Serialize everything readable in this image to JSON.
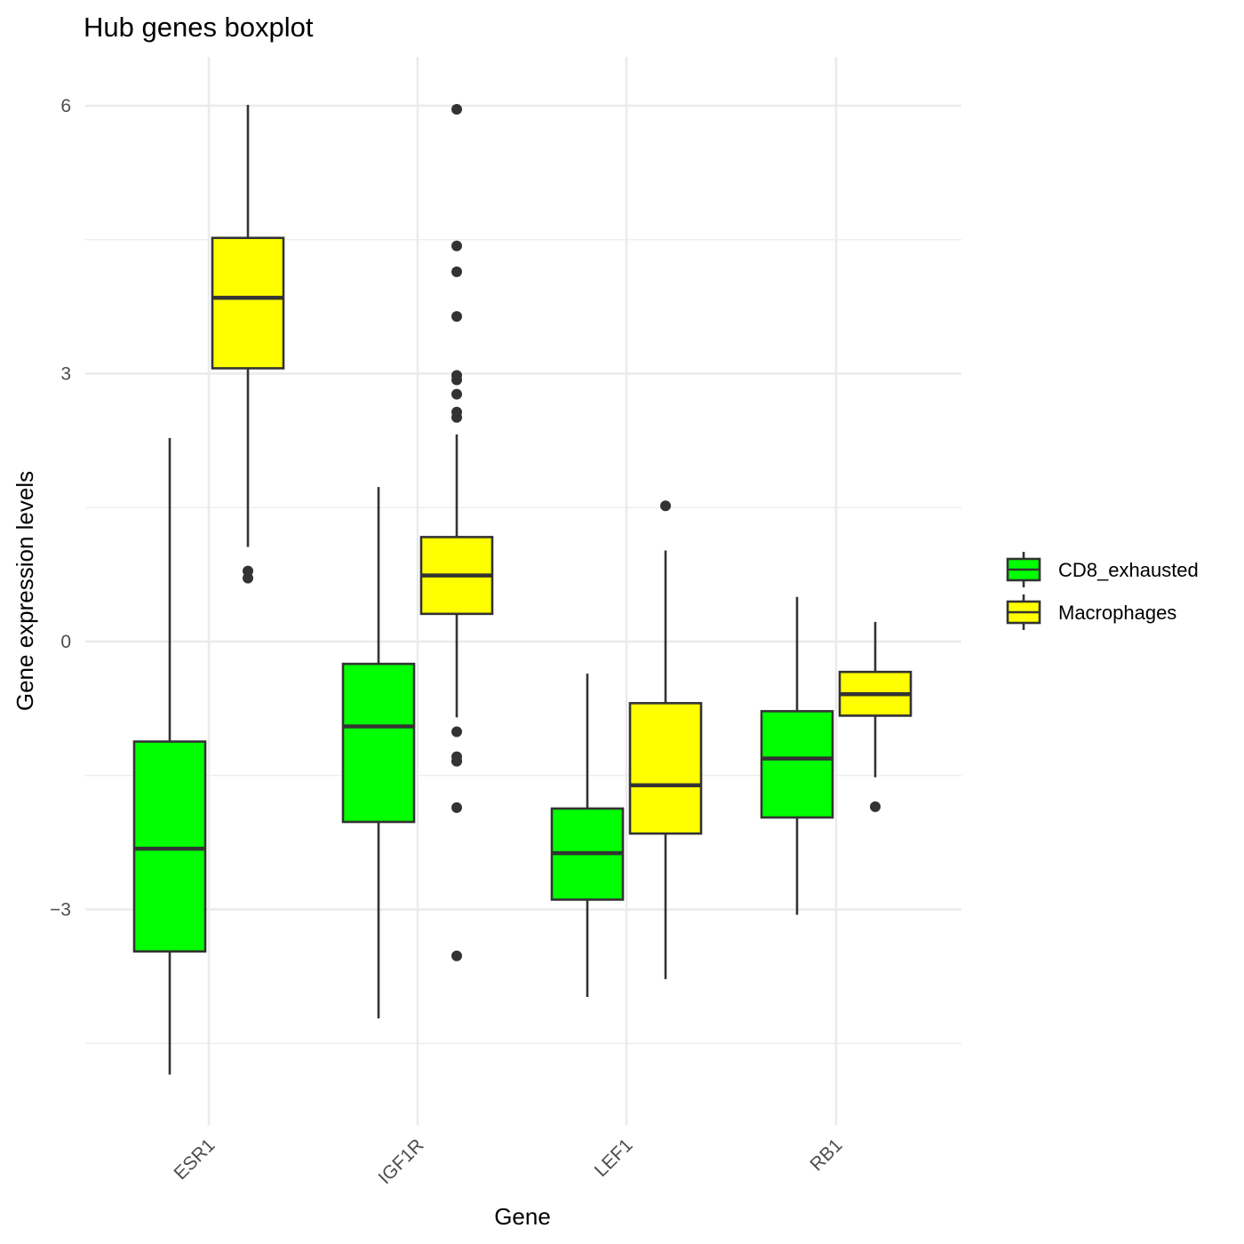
{
  "chart_data": {
    "type": "boxplot",
    "title": "Hub genes boxplot",
    "xlabel": "Gene",
    "ylabel": "Gene expression levels",
    "categories": [
      "ESR1",
      "IGF1R",
      "LEF1",
      "RB1"
    ],
    "ylim": [
      -5.4,
      6.55
    ],
    "yticks": [
      -3,
      0,
      3,
      6
    ],
    "yticks_minor": [
      -4.5,
      -1.5,
      1.5,
      4.5
    ],
    "grid": true,
    "legend_position": "right",
    "colors": {
      "grid": "#ebebeb",
      "outline": "#333333",
      "axis_text": "#4d4d4d",
      "text": "#000000"
    },
    "series": [
      {
        "name": "CD8_exhausted",
        "color": "#00ff00",
        "boxes": [
          {
            "category": "ESR1",
            "lower_whisker": -4.85,
            "q1": -3.47,
            "median": -2.32,
            "q3": -1.12,
            "upper_whisker": 2.28,
            "outliers": []
          },
          {
            "category": "IGF1R",
            "lower_whisker": -4.22,
            "q1": -2.02,
            "median": -0.95,
            "q3": -0.25,
            "upper_whisker": 1.73,
            "outliers": []
          },
          {
            "category": "LEF1",
            "lower_whisker": -3.98,
            "q1": -2.89,
            "median": -2.37,
            "q3": -1.87,
            "upper_whisker": -0.36,
            "outliers": []
          },
          {
            "category": "RB1",
            "lower_whisker": -3.06,
            "q1": -1.97,
            "median": -1.31,
            "q3": -0.78,
            "upper_whisker": 0.5,
            "outliers": []
          }
        ]
      },
      {
        "name": "Macrophages",
        "color": "#ffff00",
        "boxes": [
          {
            "category": "ESR1",
            "lower_whisker": 1.06,
            "q1": 3.06,
            "median": 3.85,
            "q3": 4.52,
            "upper_whisker": 6.01,
            "outliers": [
              0.79,
              0.71
            ]
          },
          {
            "category": "IGF1R",
            "lower_whisker": -0.85,
            "q1": 0.31,
            "median": 0.74,
            "q3": 1.17,
            "upper_whisker": 2.32,
            "outliers": [
              5.96,
              4.43,
              4.14,
              3.64,
              2.98,
              2.93,
              2.77,
              2.57,
              2.51,
              -1.01,
              -1.29,
              -1.34,
              -1.34,
              -1.86,
              -3.52
            ]
          },
          {
            "category": "LEF1",
            "lower_whisker": -3.78,
            "q1": -2.15,
            "median": -1.61,
            "q3": -0.69,
            "upper_whisker": 1.02,
            "outliers": [
              1.52
            ]
          },
          {
            "category": "RB1",
            "lower_whisker": -1.52,
            "q1": -0.83,
            "median": -0.59,
            "q3": -0.34,
            "upper_whisker": 0.22,
            "outliers": [
              -1.85
            ]
          }
        ]
      }
    ]
  }
}
